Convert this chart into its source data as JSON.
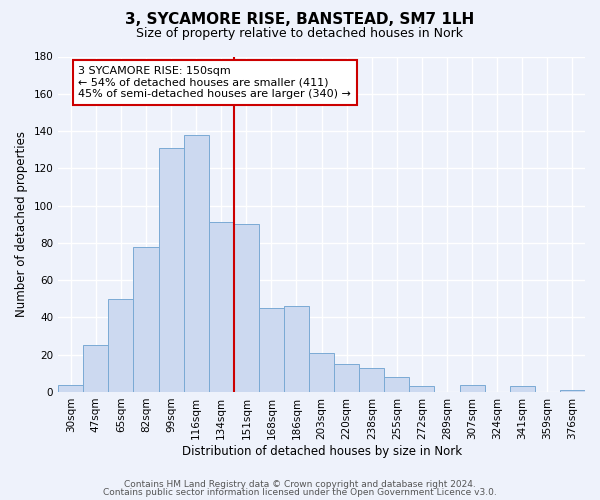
{
  "title": "3, SYCAMORE RISE, BANSTEAD, SM7 1LH",
  "subtitle": "Size of property relative to detached houses in Nork",
  "xlabel": "Distribution of detached houses by size in Nork",
  "ylabel": "Number of detached properties",
  "bar_labels": [
    "30sqm",
    "47sqm",
    "65sqm",
    "82sqm",
    "99sqm",
    "116sqm",
    "134sqm",
    "151sqm",
    "168sqm",
    "186sqm",
    "203sqm",
    "220sqm",
    "238sqm",
    "255sqm",
    "272sqm",
    "289sqm",
    "307sqm",
    "324sqm",
    "341sqm",
    "359sqm",
    "376sqm"
  ],
  "bar_values": [
    4,
    25,
    50,
    78,
    131,
    138,
    91,
    90,
    45,
    46,
    21,
    15,
    13,
    8,
    3,
    0,
    4,
    0,
    3,
    0,
    1
  ],
  "bar_color": "#ccd9f0",
  "bar_edge_color": "#7aaad4",
  "marker_color": "#cc0000",
  "annotation_line1": "3 SYCAMORE RISE: 150sqm",
  "annotation_line2": "← 54% of detached houses are smaller (411)",
  "annotation_line3": "45% of semi-detached houses are larger (340) →",
  "annotation_box_color": "#cc0000",
  "ylim": [
    0,
    180
  ],
  "yticks": [
    0,
    20,
    40,
    60,
    80,
    100,
    120,
    140,
    160,
    180
  ],
  "footer1": "Contains HM Land Registry data © Crown copyright and database right 2024.",
  "footer2": "Contains public sector information licensed under the Open Government Licence v3.0.",
  "bg_color": "#eef2fb",
  "plot_bg_color": "#eef2fb",
  "grid_color": "#ffffff",
  "title_fontsize": 11,
  "subtitle_fontsize": 9,
  "axis_label_fontsize": 8.5,
  "tick_fontsize": 7.5,
  "annotation_fontsize": 8,
  "footer_fontsize": 6.5
}
